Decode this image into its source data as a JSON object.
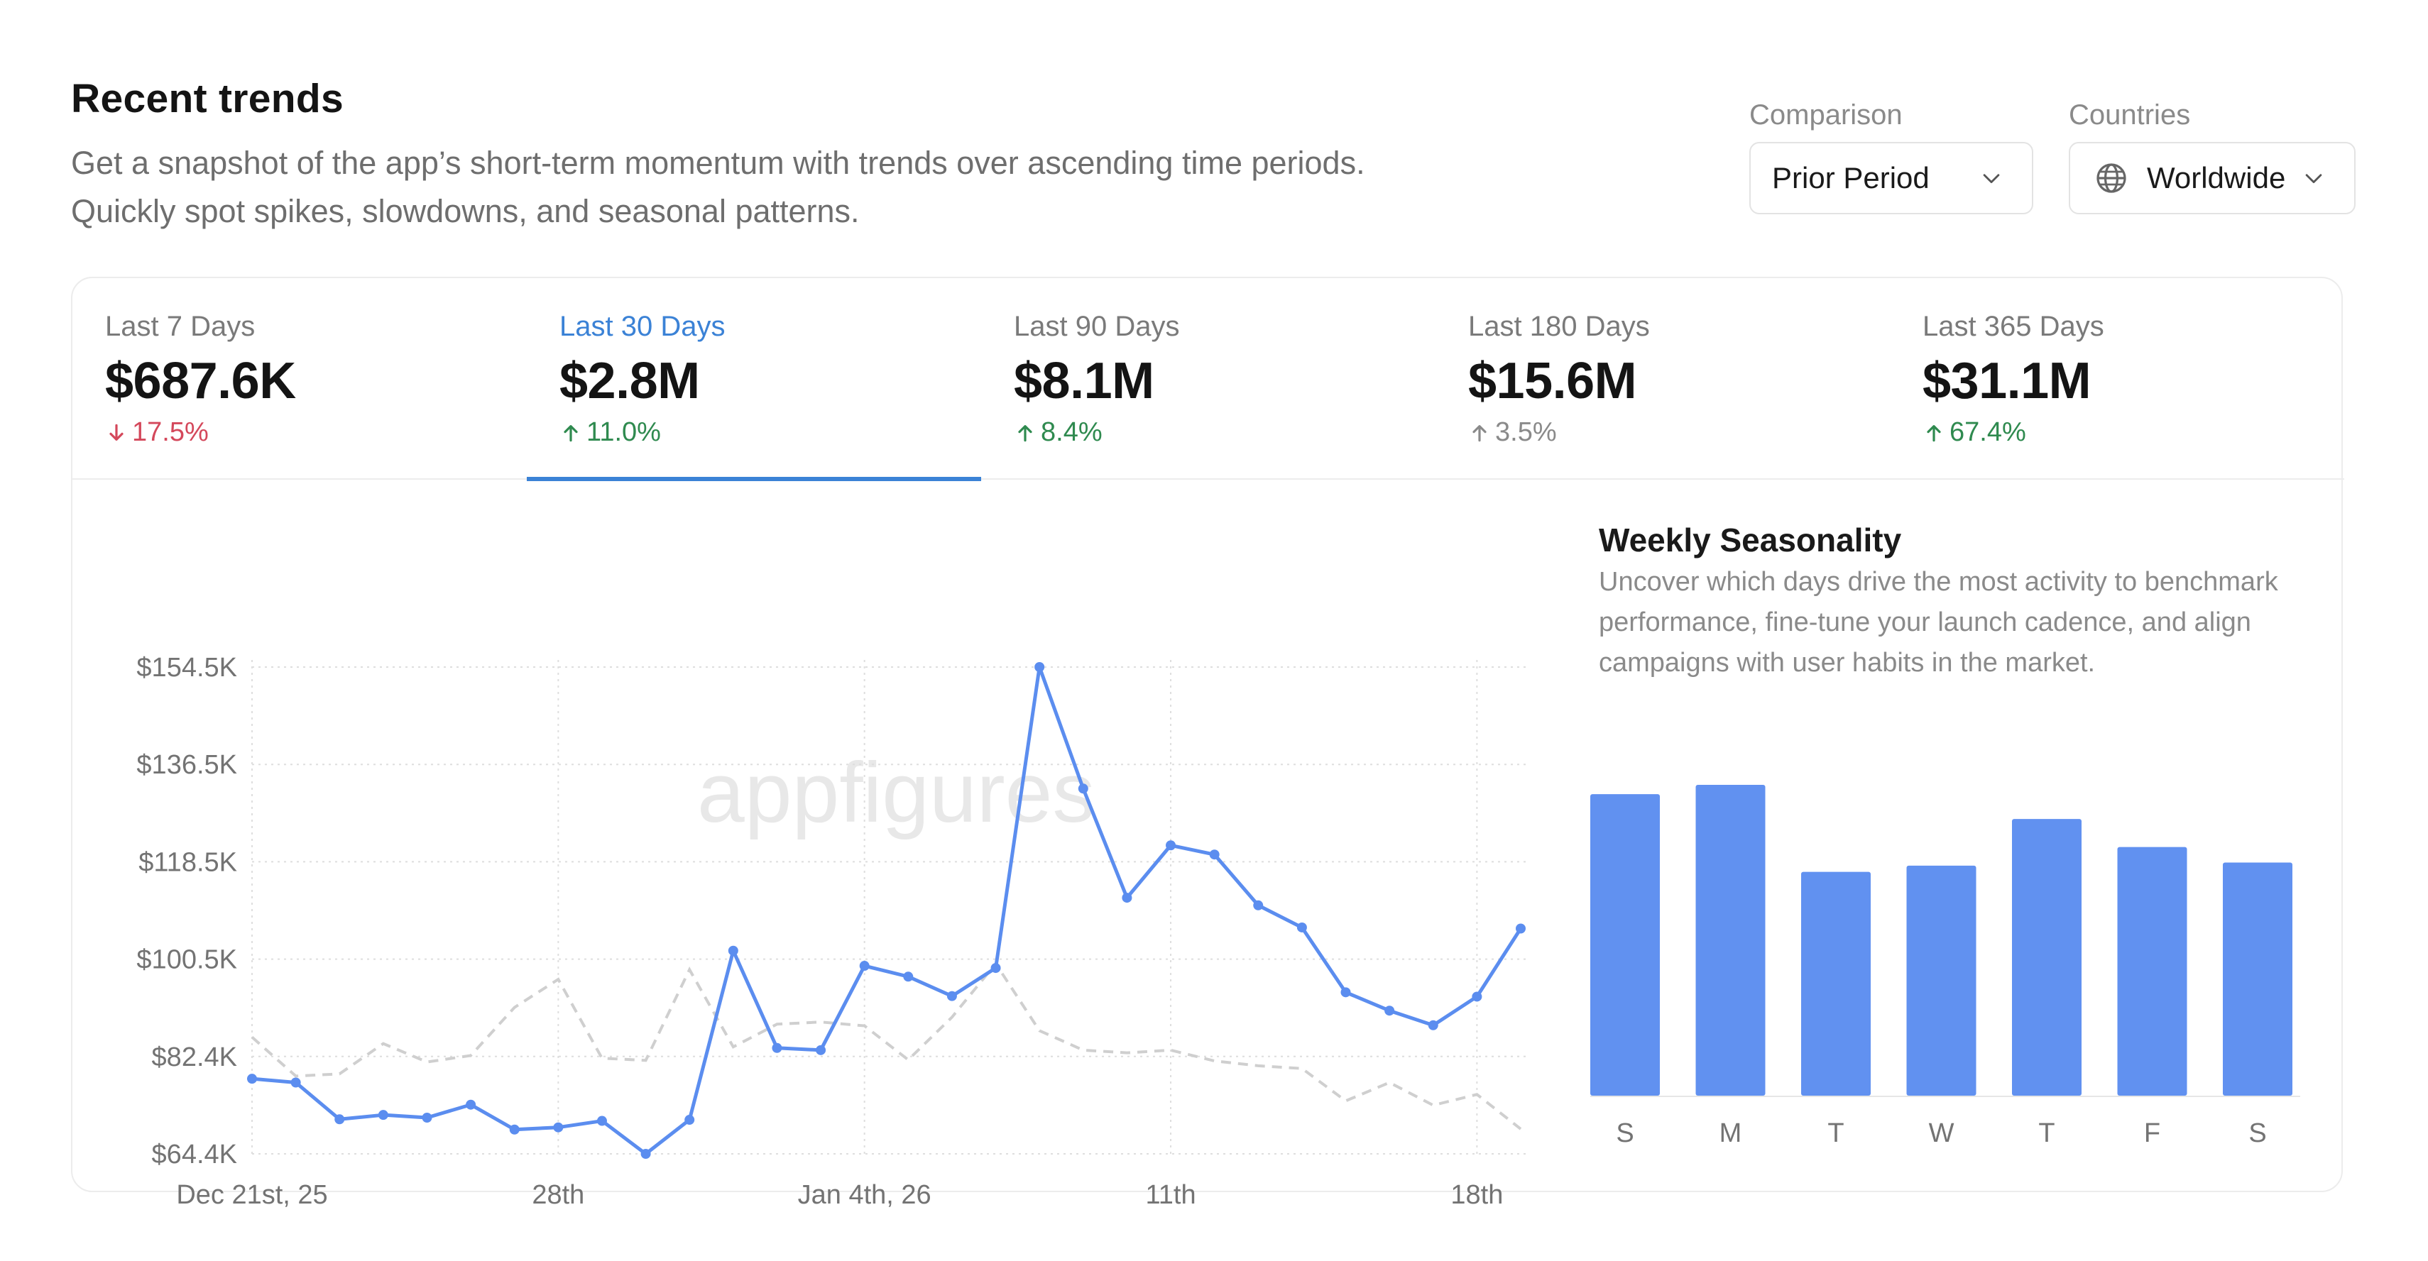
{
  "header": {
    "title": "Recent trends",
    "subtitle": "Get a snapshot of the app’s short-term momentum with trends over ascending time periods. Quickly spot spikes, slowdowns, and seasonal patterns."
  },
  "filters": {
    "comparison": {
      "label": "Comparison",
      "value": "Prior Period",
      "icon": "chevron-down-icon"
    },
    "countries": {
      "label": "Countries",
      "value": "Worldwide",
      "icon": "globe-icon"
    }
  },
  "colors": {
    "accent": "#3b82d6",
    "line_series": "#5b8def",
    "comparison_series": "#cfcfcf",
    "bar": "#6191f0",
    "negative": "#d4485b",
    "positive": "#2f8a4f",
    "neutral": "#8a8a8a"
  },
  "tabs": [
    {
      "label": "Last 7 Days",
      "value": "$687.6K",
      "change": "17.5%",
      "direction": "down",
      "active": false
    },
    {
      "label": "Last 30 Days",
      "value": "$2.8M",
      "change": "11.0%",
      "direction": "up",
      "active": true
    },
    {
      "label": "Last 90 Days",
      "value": "$8.1M",
      "change": "8.4%",
      "direction": "up",
      "active": false
    },
    {
      "label": "Last 180 Days",
      "value": "$15.6M",
      "change": "3.5%",
      "direction": "up-neutral",
      "active": false
    },
    {
      "label": "Last 365 Days",
      "value": "$31.1M",
      "change": "67.4%",
      "direction": "up",
      "active": false
    }
  ],
  "watermark": "appfigures",
  "seasonality": {
    "title": "Weekly Seasonality",
    "description": "Uncover which days drive the most activity to benchmark performance, fine-tune your launch cadence, and align campaigns with user habits in the market."
  },
  "chart_data": [
    {
      "type": "line",
      "x_ticks": [
        "Dec 21st, 25",
        "28th",
        "Jan 4th, 26",
        "11th",
        "18th"
      ],
      "y_ticks": [
        "$64.4K",
        "$82.4K",
        "$100.5K",
        "$118.5K",
        "$136.5K",
        "$154.5K"
      ],
      "ylim": [
        64.4,
        154.5
      ],
      "grid": true,
      "series": [
        {
          "role": "current",
          "values": [
            78.3,
            77.6,
            70.8,
            71.6,
            71.1,
            73.5,
            68.9,
            69.3,
            70.5,
            64.4,
            70.7,
            102,
            84,
            83.6,
            99.2,
            97.2,
            93.6,
            98.8,
            154.5,
            132,
            111.8,
            121.5,
            119.8,
            110.4,
            106.3,
            94.3,
            90.9,
            88.2,
            93.5,
            106.1
          ]
        },
        {
          "role": "comparison",
          "values": [
            86,
            78.8,
            79.2,
            84.8,
            81.4,
            82.6,
            91.5,
            96.7,
            82.1,
            81.7,
            98.5,
            84.2,
            88.4,
            88.8,
            88.1,
            81.8,
            89.7,
            99.6,
            87.2,
            83.6,
            83.1,
            83.6,
            81.6,
            80.7,
            80.2,
            74.2,
            77.6,
            73.4,
            75.4,
            69
          ]
        }
      ]
    },
    {
      "type": "bar",
      "title": "Weekly Seasonality",
      "categories": [
        "S",
        "M",
        "T",
        "W",
        "T",
        "F",
        "S"
      ],
      "values": [
        97,
        100,
        72,
        74,
        89,
        80,
        75
      ],
      "ylim": [
        0,
        100
      ]
    }
  ]
}
